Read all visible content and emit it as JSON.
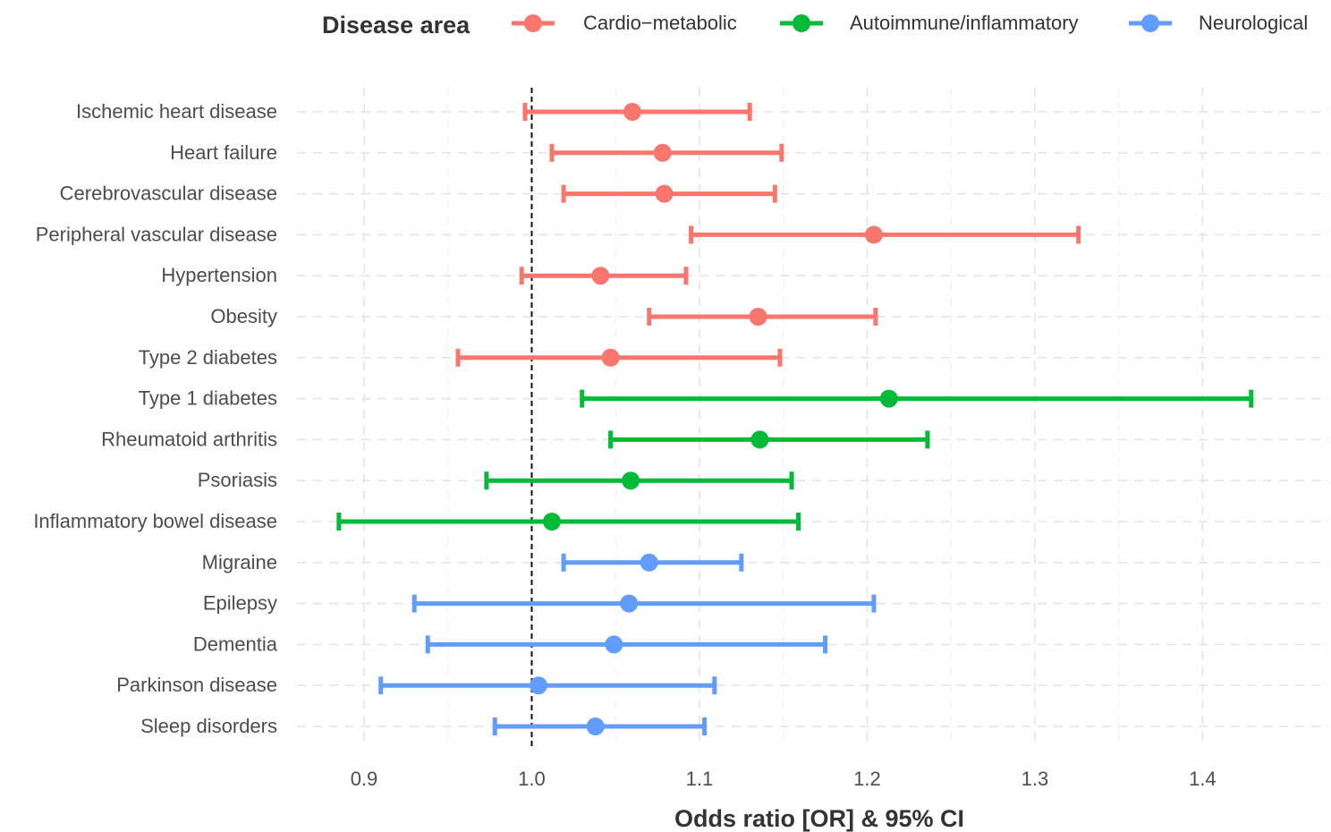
{
  "chart_data": {
    "type": "forest",
    "legend": {
      "title": "Disease area",
      "position": "top",
      "entries": [
        {
          "name": "Cardio−metabolic",
          "color": "#F8766D"
        },
        {
          "name": "Autoimmune/inflammatory",
          "color": "#00BA38"
        },
        {
          "name": "Neurological",
          "color": "#619CFF"
        }
      ]
    },
    "xlabel": "Odds ratio [OR] & 95% CI",
    "xlim": [
      0.86,
      1.475
    ],
    "xticks": [
      "0.9",
      "1.0",
      "1.1",
      "1.2",
      "1.3",
      "1.4"
    ],
    "xtick_values": [
      0.9,
      1.0,
      1.1,
      1.2,
      1.3,
      1.4
    ],
    "reference_line": 1.0,
    "grid": true,
    "rows": [
      {
        "label": "Ischemic heart disease",
        "group": 0,
        "or": 1.06,
        "lo": 0.996,
        "hi": 1.13
      },
      {
        "label": "Heart failure",
        "group": 0,
        "or": 1.078,
        "lo": 1.012,
        "hi": 1.149
      },
      {
        "label": "Cerebrovascular disease",
        "group": 0,
        "or": 1.079,
        "lo": 1.019,
        "hi": 1.145
      },
      {
        "label": "Peripheral vascular disease",
        "group": 0,
        "or": 1.204,
        "lo": 1.095,
        "hi": 1.326
      },
      {
        "label": "Hypertension",
        "group": 0,
        "or": 1.041,
        "lo": 0.994,
        "hi": 1.092
      },
      {
        "label": "Obesity",
        "group": 0,
        "or": 1.135,
        "lo": 1.07,
        "hi": 1.205
      },
      {
        "label": "Type 2 diabetes",
        "group": 0,
        "or": 1.047,
        "lo": 0.956,
        "hi": 1.148
      },
      {
        "label": "Type 1 diabetes",
        "group": 1,
        "or": 1.213,
        "lo": 1.03,
        "hi": 1.429
      },
      {
        "label": "Rheumatoid arthritis",
        "group": 1,
        "or": 1.136,
        "lo": 1.047,
        "hi": 1.236
      },
      {
        "label": "Psoriasis",
        "group": 1,
        "or": 1.059,
        "lo": 0.973,
        "hi": 1.155
      },
      {
        "label": "Inflammatory bowel disease",
        "group": 1,
        "or": 1.012,
        "lo": 0.885,
        "hi": 1.159
      },
      {
        "label": "Migraine",
        "group": 2,
        "or": 1.07,
        "lo": 1.019,
        "hi": 1.125
      },
      {
        "label": "Epilepsy",
        "group": 2,
        "or": 1.058,
        "lo": 0.93,
        "hi": 1.204
      },
      {
        "label": "Dementia",
        "group": 2,
        "or": 1.049,
        "lo": 0.938,
        "hi": 1.175
      },
      {
        "label": "Parkinson disease",
        "group": 2,
        "or": 1.004,
        "lo": 0.91,
        "hi": 1.109
      },
      {
        "label": "Sleep disorders",
        "group": 2,
        "or": 1.038,
        "lo": 0.978,
        "hi": 1.103
      }
    ]
  }
}
